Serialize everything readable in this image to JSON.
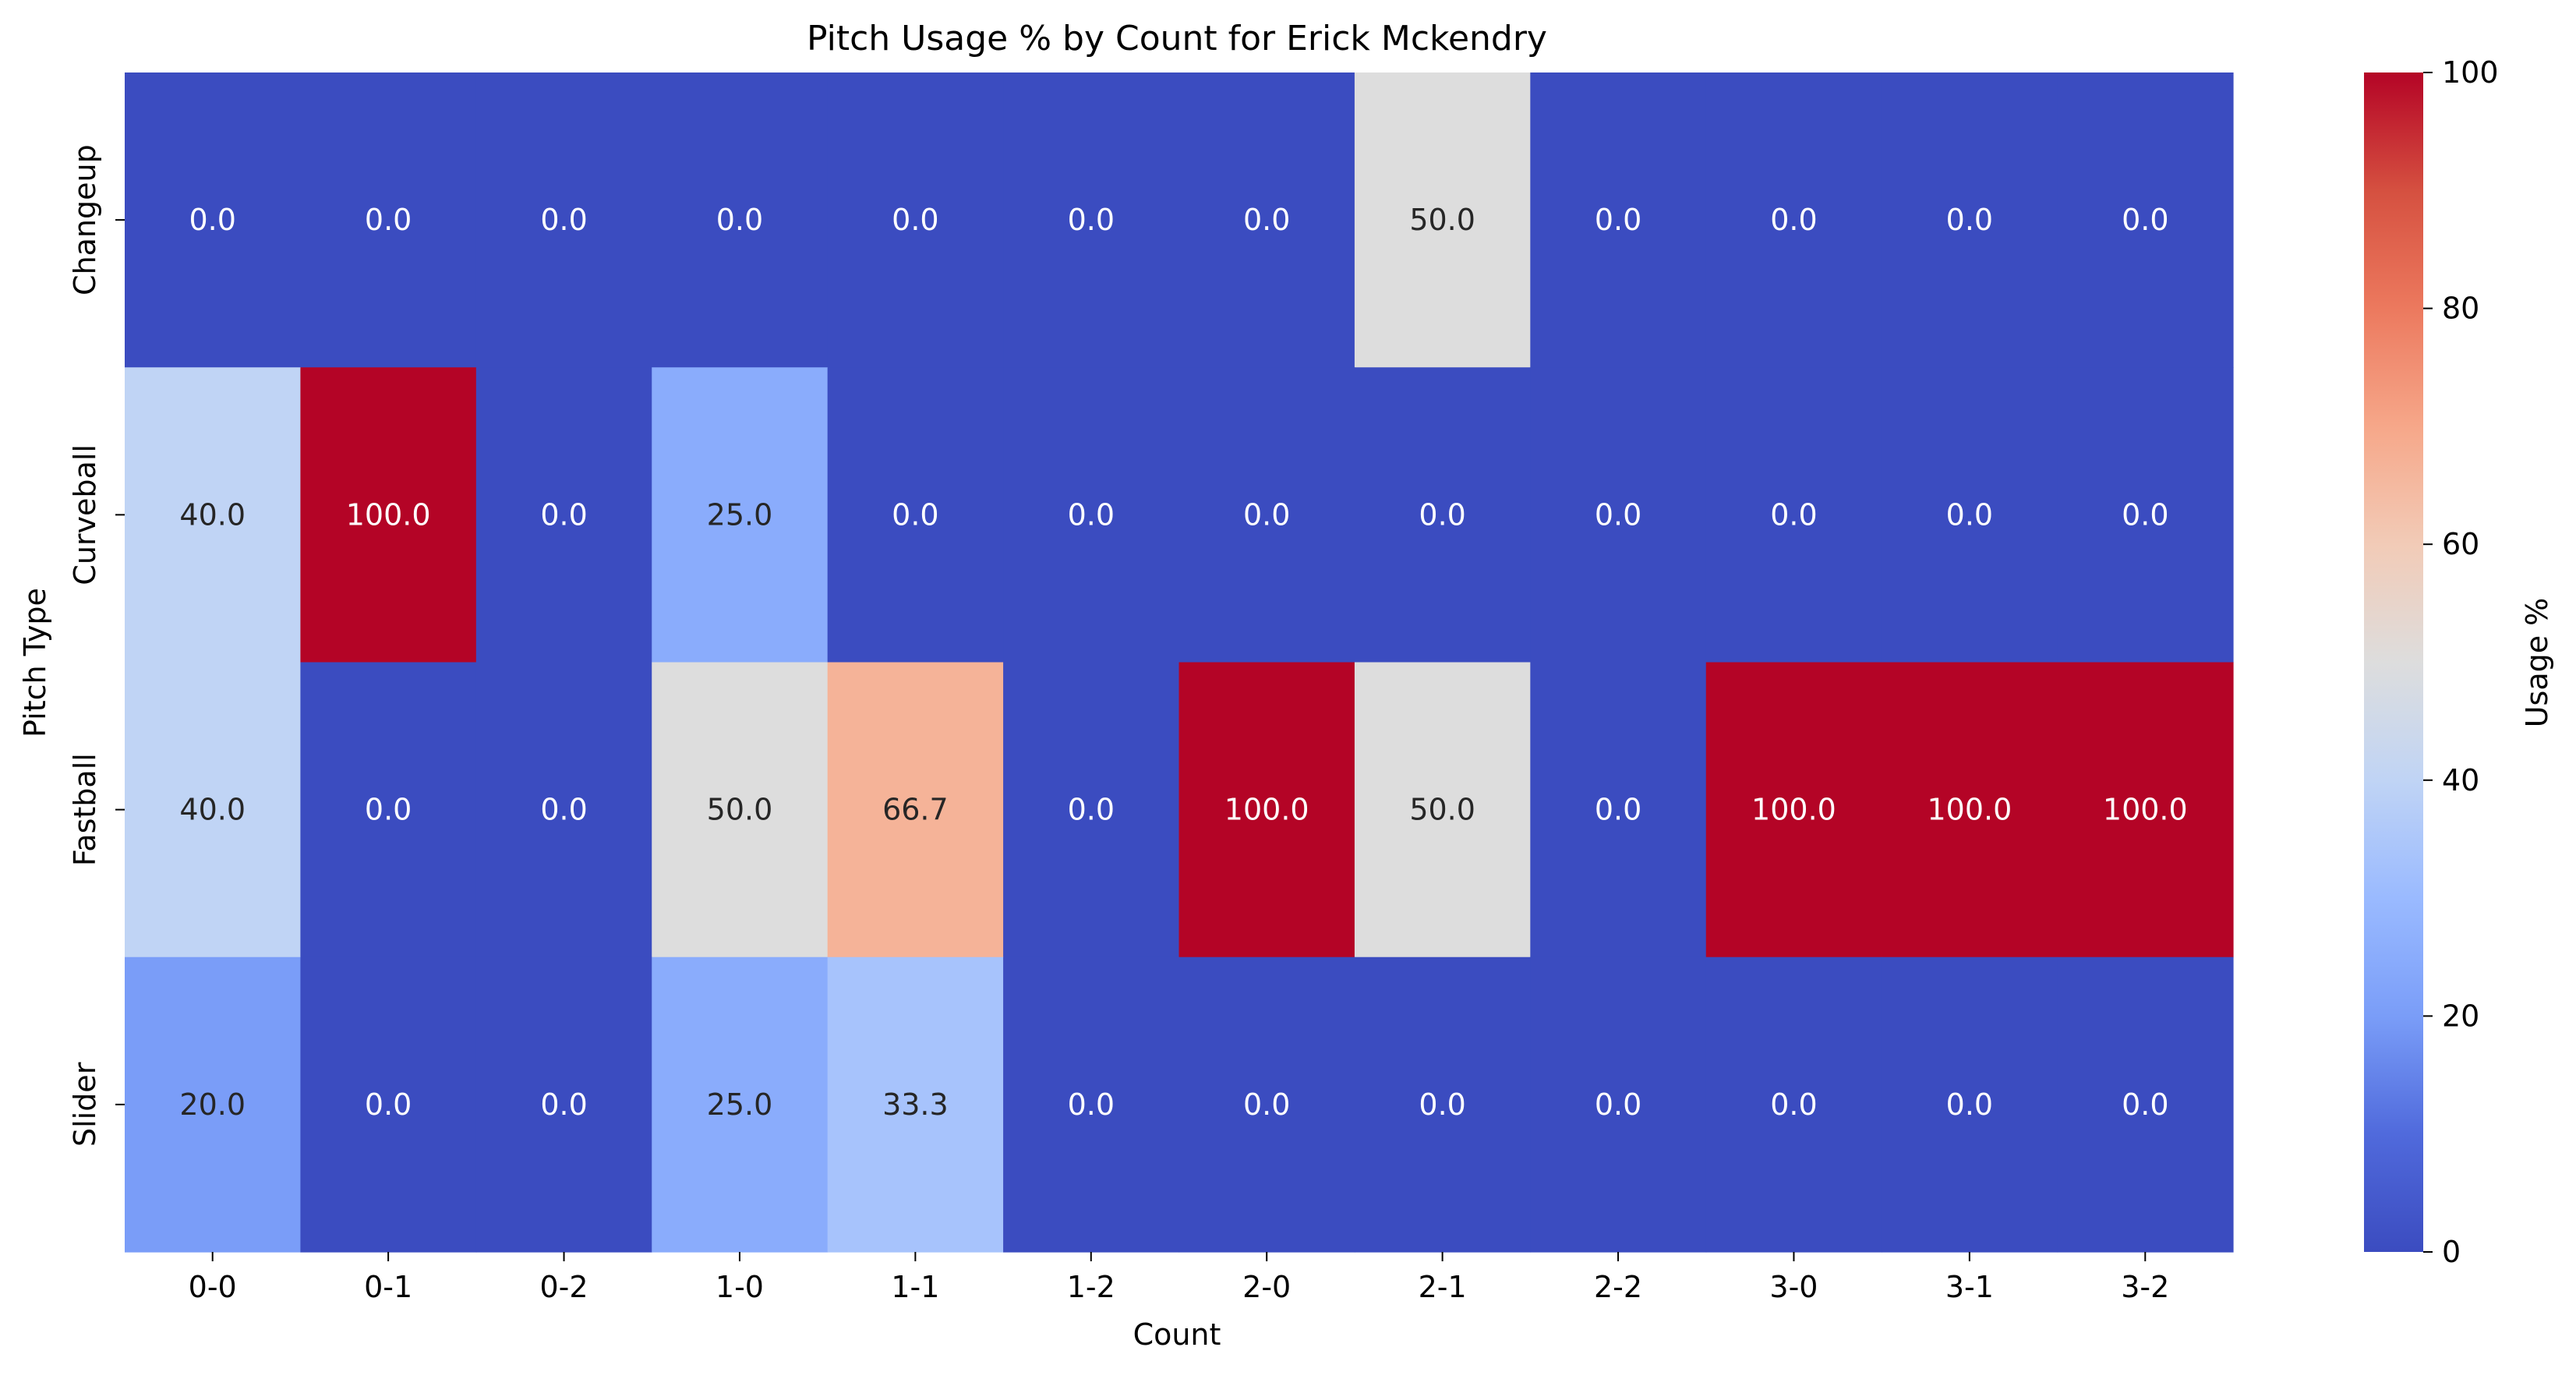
{
  "chart_data": {
    "type": "heatmap",
    "title": "Pitch Usage % by Count for Erick Mckendry",
    "xlabel": "Count",
    "ylabel": "Pitch Type",
    "x_categories": [
      "0-0",
      "0-1",
      "0-2",
      "1-0",
      "1-1",
      "1-2",
      "2-0",
      "2-1",
      "2-2",
      "3-0",
      "3-1",
      "3-2"
    ],
    "y_categories": [
      "Changeup",
      "Curveball",
      "Fastball",
      "Slider"
    ],
    "values": [
      [
        0.0,
        0.0,
        0.0,
        0.0,
        0.0,
        0.0,
        0.0,
        50.0,
        0.0,
        0.0,
        0.0,
        0.0
      ],
      [
        40.0,
        100.0,
        0.0,
        25.0,
        0.0,
        0.0,
        0.0,
        0.0,
        0.0,
        0.0,
        0.0,
        0.0
      ],
      [
        40.0,
        0.0,
        0.0,
        50.0,
        66.7,
        0.0,
        100.0,
        50.0,
        0.0,
        100.0,
        100.0,
        100.0
      ],
      [
        20.0,
        0.0,
        0.0,
        25.0,
        33.3,
        0.0,
        0.0,
        0.0,
        0.0,
        0.0,
        0.0,
        0.0
      ]
    ],
    "value_format": "0.0",
    "colormap": "coolwarm",
    "vmin": 0,
    "vmax": 100,
    "colorbar": {
      "label": "Usage %",
      "ticks": [
        0,
        20,
        40,
        60,
        80,
        100
      ],
      "placement": "right"
    }
  }
}
